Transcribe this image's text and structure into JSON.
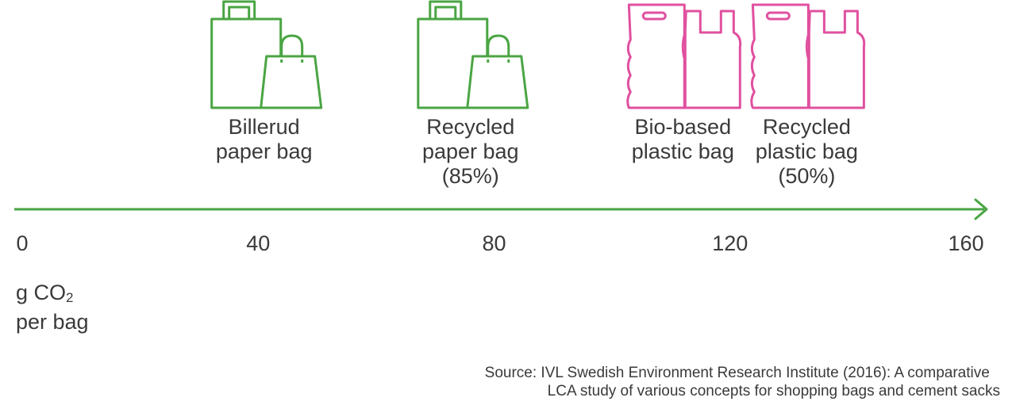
{
  "chart_data": {
    "type": "scatter",
    "title": "",
    "xlabel": "",
    "ylabel": "",
    "xlim": [
      0,
      160
    ],
    "ticks": [
      "0",
      "40",
      "80",
      "120",
      "160"
    ],
    "unit": {
      "prefix": "g CO",
      "sub": "2",
      "suffix": "per bag"
    },
    "points": [
      {
        "label_lines": [
          "Billerud",
          "paper bag"
        ],
        "x": 41,
        "icon": "paper-bag-icon",
        "color": "#4aa543"
      },
      {
        "label_lines": [
          "Recycled",
          "paper bag",
          "(85%)"
        ],
        "x": 76,
        "icon": "paper-bag-icon",
        "color": "#4aa543"
      },
      {
        "label_lines": [
          "Bio-based",
          "plastic bag"
        ],
        "x": 112,
        "icon": "plastic-bag-icon",
        "color": "#e0509f"
      },
      {
        "label_lines": [
          "Recycled",
          "plastic bag",
          "(50%)"
        ],
        "x": 133,
        "icon": "plastic-bag-icon",
        "color": "#e0509f"
      }
    ]
  },
  "axis_color": "#4aa543",
  "source": {
    "line1": "Source: IVL Swedish Environment Research Institute (2016): A comparative",
    "line2": "LCA study of various concepts for shopping bags and cement sacks"
  }
}
